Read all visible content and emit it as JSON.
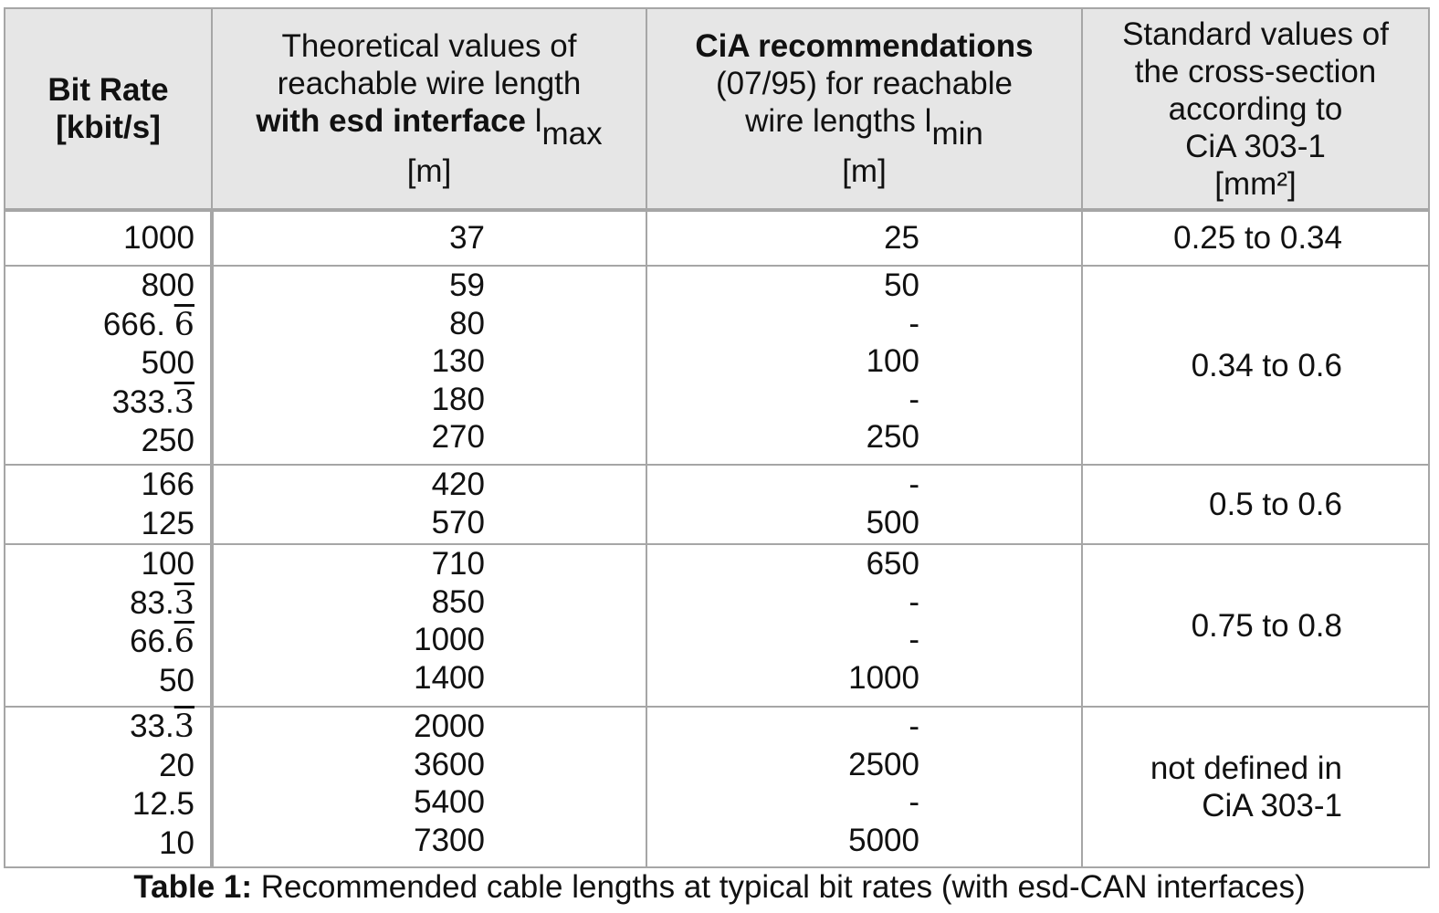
{
  "header": {
    "bit_rate": "Bit Rate",
    "bit_rate_unit": "[kbit/s]",
    "theoretical": {
      "line1": "Theoretical values of",
      "line2": "reachable wire length",
      "line3_bold": "with esd interface",
      "symbol": "l",
      "subscript": "max",
      "unit": "[m]"
    },
    "cia": {
      "line1_bold": "CiA recommendations",
      "line2": "(07/95) for reachable",
      "line3": "wire lengths",
      "symbol": "l",
      "subscript": "min",
      "unit": "[m]"
    },
    "standard": {
      "line1": "Standard values of",
      "line2": "the cross-section",
      "line3": "according to",
      "line4": "CiA 303-1",
      "unit": "[mm²]"
    }
  },
  "groups": [
    {
      "rates": [
        {
          "text": "1000",
          "repeating": ""
        }
      ],
      "theoretical": [
        "37"
      ],
      "cia": [
        "25"
      ],
      "cross_section": [
        "0.25 to 0.34"
      ]
    },
    {
      "rates": [
        {
          "text": "800",
          "repeating": ""
        },
        {
          "text": "666. ",
          "repeating": "6"
        },
        {
          "text": "500",
          "repeating": ""
        },
        {
          "text": "333.",
          "repeating": "3"
        },
        {
          "text": "250",
          "repeating": ""
        }
      ],
      "theoretical": [
        "59",
        "80",
        "130",
        "180",
        "270"
      ],
      "cia": [
        "50",
        "-",
        "100",
        "-",
        "250"
      ],
      "cross_section": [
        "0.34 to 0.6"
      ]
    },
    {
      "rates": [
        {
          "text": "166",
          "repeating": ""
        },
        {
          "text": "125",
          "repeating": ""
        }
      ],
      "theoretical": [
        "420",
        "570"
      ],
      "cia": [
        "-",
        "500"
      ],
      "cross_section": [
        "0.5 to 0.6"
      ]
    },
    {
      "rates": [
        {
          "text": "100",
          "repeating": ""
        },
        {
          "text": "83.",
          "repeating": "3"
        },
        {
          "text": "66.",
          "repeating": "6"
        },
        {
          "text": "50",
          "repeating": ""
        }
      ],
      "theoretical": [
        "710",
        "850",
        "1000",
        "1400"
      ],
      "cia": [
        "650",
        "-",
        "-",
        "1000"
      ],
      "cross_section": [
        "0.75 to 0.8"
      ]
    },
    {
      "rates": [
        {
          "text": "33.",
          "repeating": "3"
        },
        {
          "text": "20",
          "repeating": ""
        },
        {
          "text": "12.5",
          "repeating": ""
        },
        {
          "text": "10",
          "repeating": ""
        }
      ],
      "theoretical": [
        "2000",
        "3600",
        "5400",
        "7300"
      ],
      "cia": [
        "-",
        "2500",
        "-",
        "5000"
      ],
      "cross_section": [
        "not defined in",
        "CiA 303-1"
      ]
    }
  ],
  "caption": {
    "label": "Table 1:",
    "text": " Recommended cable lengths at typical bit rates (with esd-CAN interfaces)"
  }
}
